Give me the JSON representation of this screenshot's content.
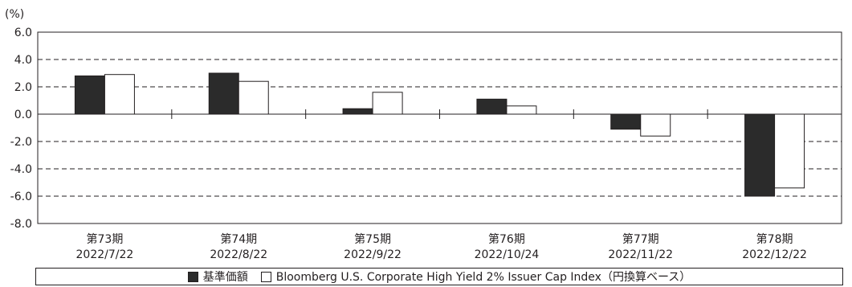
{
  "chart_data": {
    "type": "bar",
    "unit_label": "(%)",
    "categories": [
      [
        "第73期",
        "2022/7/22"
      ],
      [
        "第74期",
        "2022/8/22"
      ],
      [
        "第75期",
        "2022/9/22"
      ],
      [
        "第76期",
        "2022/10/24"
      ],
      [
        "第77期",
        "2022/11/22"
      ],
      [
        "第78期",
        "2022/12/22"
      ]
    ],
    "series": [
      {
        "name": "基準価額",
        "color": "#2b2b2b",
        "values": [
          2.8,
          3.0,
          0.4,
          1.1,
          -1.1,
          -6.0
        ]
      },
      {
        "name": "Bloomberg U.S. Corporate High Yield 2% Issuer Cap Index（円換算ベース）",
        "color": "#ffffff",
        "values": [
          2.9,
          2.4,
          1.6,
          0.6,
          -1.6,
          -5.4
        ]
      }
    ],
    "ylim": [
      -8.0,
      6.0
    ],
    "yticks": [
      "6.0",
      "4.0",
      "2.0",
      "0.0",
      "-2.0",
      "-4.0",
      "-6.0",
      "-8.0"
    ],
    "grid": "dashed",
    "legend": "bottom"
  }
}
